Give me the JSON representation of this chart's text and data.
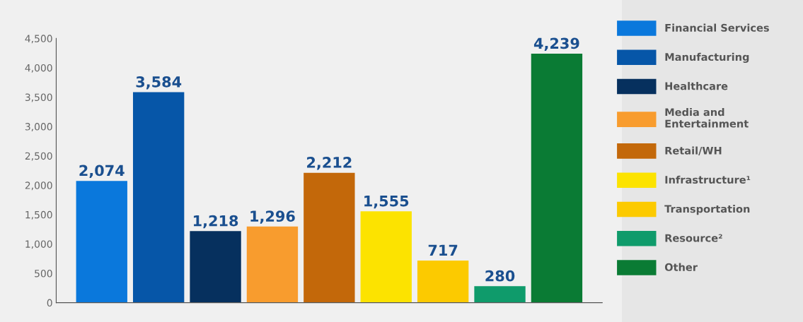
{
  "chart_data": {
    "type": "bar",
    "categories": [
      null,
      null,
      null,
      null,
      null,
      null,
      null,
      null,
      null
    ],
    "series": [
      {
        "name": "Financial Services",
        "color": "#0a78dc",
        "values": [
          2074,
          null,
          null,
          null,
          null,
          null,
          null,
          null,
          null
        ],
        "value_labels": [
          "2,074",
          null,
          null,
          null,
          null,
          null,
          null,
          null,
          null
        ]
      },
      {
        "name": "Manufacturing",
        "color": "#0656a8",
        "values": [
          null,
          3584,
          null,
          null,
          null,
          null,
          null,
          null,
          null
        ],
        "value_labels": [
          null,
          "3,584",
          null,
          null,
          null,
          null,
          null,
          null,
          null
        ]
      },
      {
        "name": "Healthcare",
        "color": "#06305e",
        "values": [
          null,
          null,
          1218,
          null,
          null,
          null,
          null,
          null,
          null
        ],
        "value_labels": [
          null,
          null,
          "1,218",
          null,
          null,
          null,
          null,
          null,
          null
        ]
      },
      {
        "name": "Media and\nEntertainment",
        "color": "#f89c2e",
        "values": [
          null,
          null,
          null,
          1296,
          null,
          null,
          null,
          null,
          null
        ],
        "value_labels": [
          null,
          null,
          null,
          "1,296",
          null,
          null,
          null,
          null,
          null
        ]
      },
      {
        "name": "Retail/WH",
        "color": "#c3680a",
        "values": [
          null,
          null,
          null,
          null,
          2212,
          null,
          null,
          null,
          null
        ],
        "value_labels": [
          null,
          null,
          null,
          null,
          "2,212",
          null,
          null,
          null,
          null
        ]
      },
      {
        "name": "Infrastructure¹",
        "color": "#fce300",
        "values": [
          null,
          null,
          null,
          null,
          null,
          1555,
          null,
          null,
          null
        ],
        "value_labels": [
          null,
          null,
          null,
          null,
          null,
          "1,555",
          null,
          null,
          null
        ]
      },
      {
        "name": "Transportation",
        "color": "#fcca00",
        "values": [
          null,
          null,
          null,
          null,
          null,
          null,
          717,
          null,
          null
        ],
        "value_labels": [
          null,
          null,
          null,
          null,
          null,
          null,
          "717",
          null,
          null
        ]
      },
      {
        "name": "Resource²",
        "color": "#0f9b6b",
        "values": [
          null,
          null,
          null,
          null,
          null,
          null,
          null,
          280,
          null
        ],
        "value_labels": [
          null,
          null,
          null,
          null,
          null,
          null,
          null,
          "280",
          null
        ]
      },
      {
        "name": "Other",
        "color": "#0a7b34",
        "values": [
          null,
          null,
          null,
          null,
          null,
          null,
          null,
          null,
          4239
        ],
        "value_labels": [
          null,
          null,
          null,
          null,
          null,
          null,
          null,
          null,
          "4,239"
        ]
      }
    ],
    "ylim": [
      0,
      4500
    ],
    "yticks": [
      {
        "value": 0,
        "label": "0"
      },
      {
        "value": 500,
        "label": "500"
      },
      {
        "value": 1000,
        "label": "1,000"
      },
      {
        "value": 1500,
        "label": "1,500"
      },
      {
        "value": 2000,
        "label": "2,000"
      },
      {
        "value": 2500,
        "label": "2,500"
      },
      {
        "value": 3000,
        "label": "3,000"
      },
      {
        "value": 3500,
        "label": "3,500"
      },
      {
        "value": 4000,
        "label": "4,000"
      },
      {
        "value": 4500,
        "label": "4,500"
      }
    ],
    "tick_labels": "y",
    "legend": "right"
  }
}
